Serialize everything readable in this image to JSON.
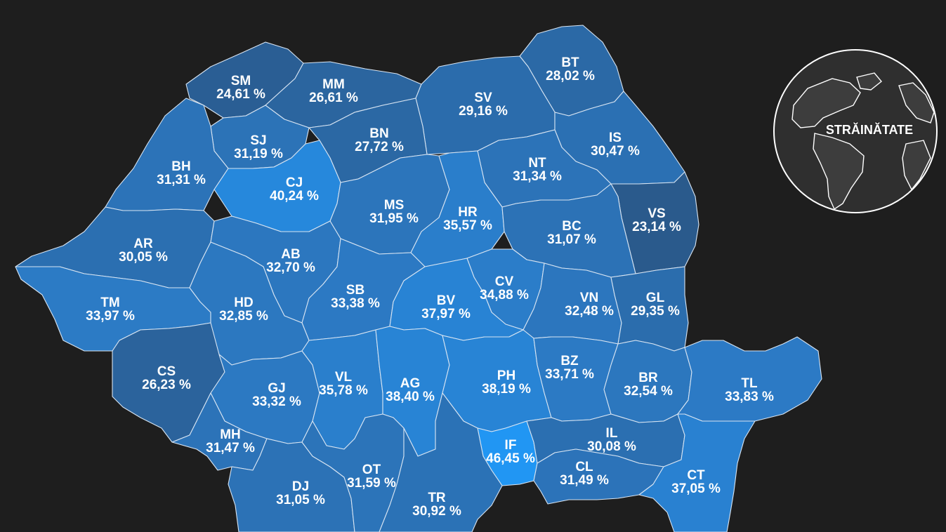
{
  "colors": {
    "background": "#1e1e1e",
    "border": "#d7e4f2",
    "scale_low": "#2a5a8c",
    "scale_mid": "#2c7ac4",
    "scale_high": "#2196f3"
  },
  "abroad": {
    "label": "STRĂINĂTATE",
    "icon": "globe-icon"
  },
  "counties": [
    {
      "code": "SM",
      "value": 24.61,
      "label": "24,61 %"
    },
    {
      "code": "MM",
      "value": 26.61,
      "label": "26,61 %"
    },
    {
      "code": "BT",
      "value": 28.02,
      "label": "28,02 %"
    },
    {
      "code": "SV",
      "value": 29.16,
      "label": "29,16 %"
    },
    {
      "code": "SJ",
      "value": 31.19,
      "label": "31,19 %"
    },
    {
      "code": "BN",
      "value": 27.72,
      "label": "27,72 %"
    },
    {
      "code": "IS",
      "value": 30.47,
      "label": "30,47 %"
    },
    {
      "code": "BH",
      "value": 31.31,
      "label": "31,31 %"
    },
    {
      "code": "CJ",
      "value": 40.24,
      "label": "40,24 %"
    },
    {
      "code": "NT",
      "value": 31.34,
      "label": "31,34 %"
    },
    {
      "code": "MS",
      "value": 31.95,
      "label": "31,95 %"
    },
    {
      "code": "HR",
      "value": 35.57,
      "label": "35,57 %"
    },
    {
      "code": "VS",
      "value": 23.14,
      "label": "23,14 %"
    },
    {
      "code": "BC",
      "value": 31.07,
      "label": "31,07 %"
    },
    {
      "code": "AR",
      "value": 30.05,
      "label": "30,05 %"
    },
    {
      "code": "AB",
      "value": 32.7,
      "label": "32,70 %"
    },
    {
      "code": "CV",
      "value": 34.88,
      "label": "34,88 %"
    },
    {
      "code": "SB",
      "value": 33.38,
      "label": "33,38 %"
    },
    {
      "code": "TM",
      "value": 33.97,
      "label": "33,97 %"
    },
    {
      "code": "HD",
      "value": 32.85,
      "label": "32,85 %"
    },
    {
      "code": "BV",
      "value": 37.97,
      "label": "37,97 %"
    },
    {
      "code": "VN",
      "value": 32.48,
      "label": "32,48 %"
    },
    {
      "code": "GL",
      "value": 29.35,
      "label": "29,35 %"
    },
    {
      "code": "CS",
      "value": 26.23,
      "label": "26,23 %"
    },
    {
      "code": "GJ",
      "value": 33.32,
      "label": "33,32 %"
    },
    {
      "code": "VL",
      "value": 35.78,
      "label": "35,78 %"
    },
    {
      "code": "AG",
      "value": 38.4,
      "label": "38,40 %"
    },
    {
      "code": "PH",
      "value": 38.19,
      "label": "38,19 %"
    },
    {
      "code": "BZ",
      "value": 33.71,
      "label": "33,71 %"
    },
    {
      "code": "BR",
      "value": 32.54,
      "label": "32,54 %"
    },
    {
      "code": "TL",
      "value": 33.83,
      "label": "33,83 %"
    },
    {
      "code": "MH",
      "value": 31.47,
      "label": "31,47 %"
    },
    {
      "code": "IF",
      "value": 46.45,
      "label": "46,45 %"
    },
    {
      "code": "IL",
      "value": 30.08,
      "label": "30,08 %"
    },
    {
      "code": "DJ",
      "value": 31.05,
      "label": "31,05 %"
    },
    {
      "code": "OT",
      "value": 31.59,
      "label": "31,59 %"
    },
    {
      "code": "CL",
      "value": 31.49,
      "label": "31,49 %"
    },
    {
      "code": "CT",
      "value": 37.05,
      "label": "37,05 %"
    },
    {
      "code": "TR",
      "value": 30.92,
      "label": "30,92 %"
    }
  ]
}
